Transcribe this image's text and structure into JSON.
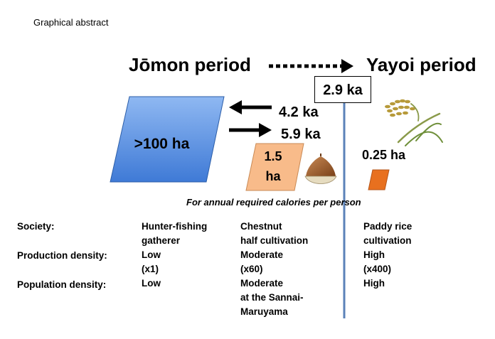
{
  "header": "Graphical abstract",
  "periods": {
    "left": "Jōmon period",
    "right": "Yayoi period"
  },
  "transition_box": "2.9 ka",
  "arrows": {
    "upper": "4.2 ka",
    "lower": "5.9 ka"
  },
  "areas": {
    "large": ">100 ha",
    "chestnut_line1": "1.5",
    "chestnut_line2": "ha",
    "rice": "0.25 ha"
  },
  "colors": {
    "blue": "#5b93e3",
    "peach": "#f8bb8a",
    "orange": "#e8701f",
    "divider": "#5b82b8"
  },
  "icons": [
    "chestnut-icon",
    "rice-plant-icon"
  ],
  "note": "For annual required calories per person",
  "table": {
    "row_labels": [
      "Society:",
      "Production density:",
      "Population density:"
    ],
    "columns": [
      [
        "Hunter-fishing",
        "gatherer",
        "Low",
        "(x1)",
        "Low"
      ],
      [
        "Chestnut",
        "half cultivation",
        "Moderate",
        "(x60)",
        "Moderate",
        "at the Sannai-",
        "Maruyama"
      ],
      [
        "Paddy rice",
        "cultivation",
        "High",
        "(x400)",
        "High"
      ]
    ]
  }
}
